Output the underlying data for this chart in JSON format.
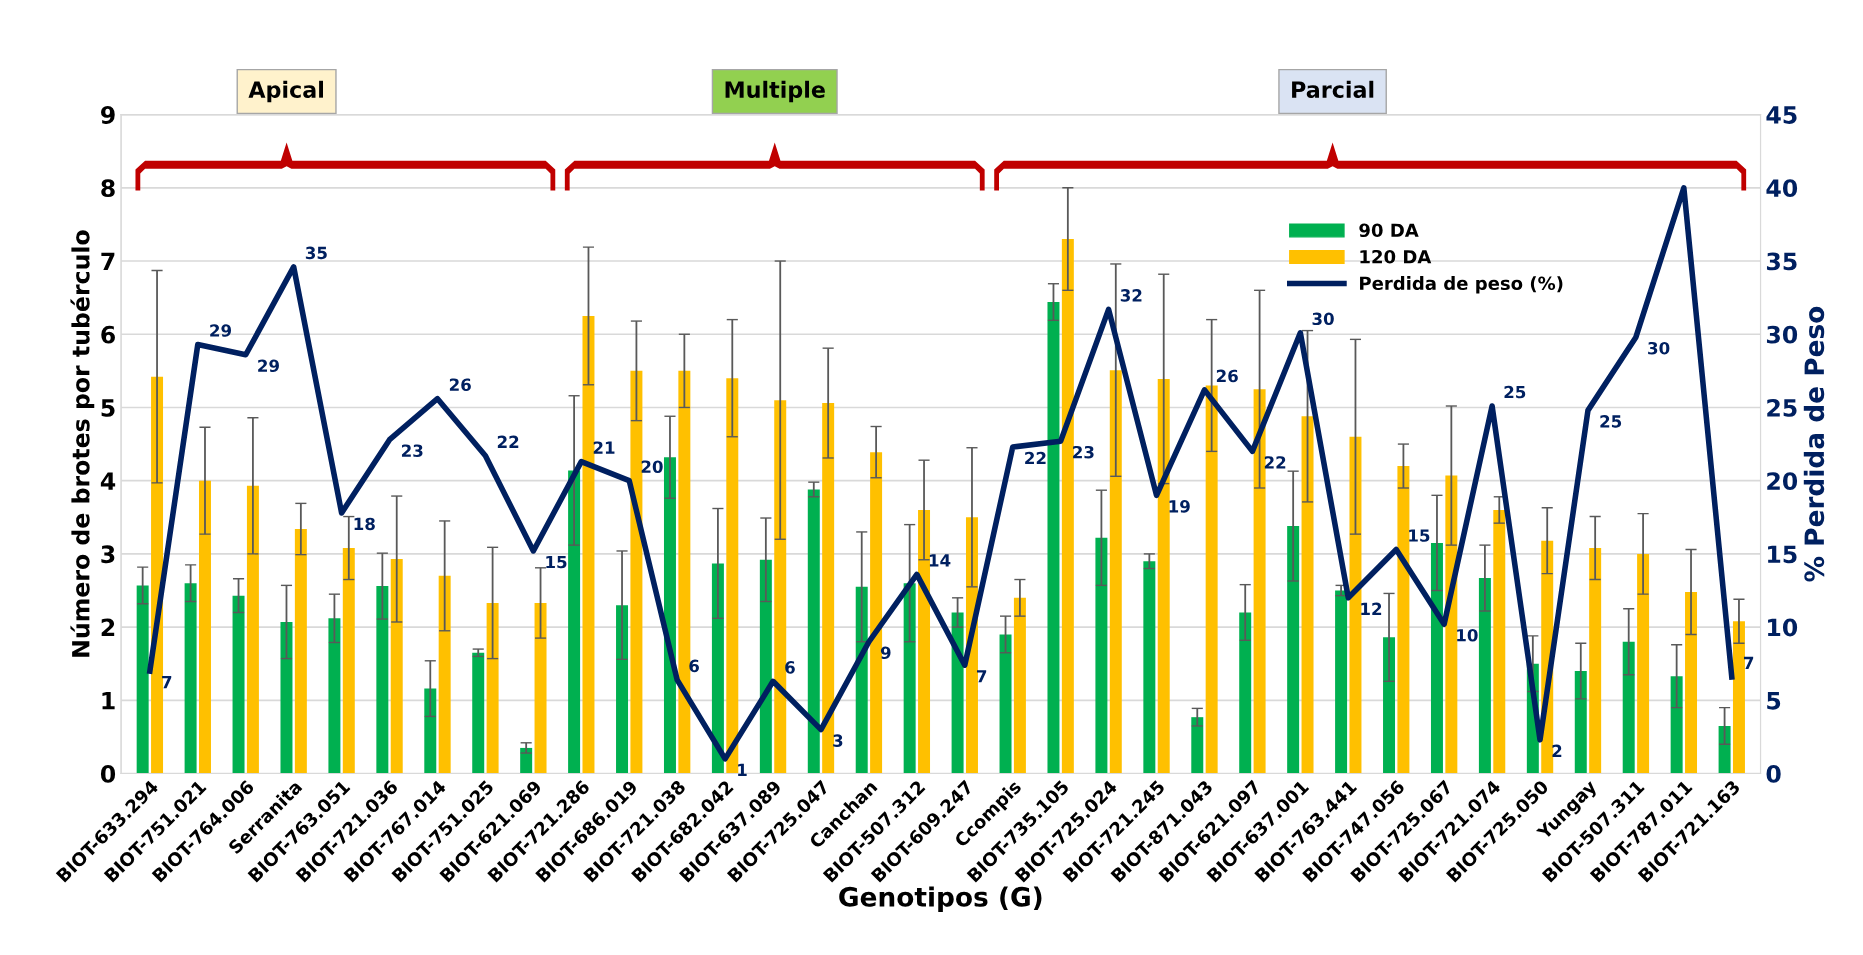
{
  "chart_data": {
    "type": "bar",
    "xlabel": "Genotipos (G)",
    "ylabel": "Número de brotes por tubérculo",
    "y2label": "% Perdida de Peso",
    "categories": [
      "BIOT-633.294",
      "BIOT-751.021",
      "BIOT-764.006",
      "Serranita",
      "BIOT-763.051",
      "BIOT-721.036",
      "BIOT-767.014",
      "BIOT-751.025",
      "BIOT-621.069",
      "BIOT-721.286",
      "BIOT-686.019",
      "BIOT-721.038",
      "BIOT-682.042",
      "BIOT-637.089",
      "BIOT-725.047",
      "Canchan",
      "BIOT-507.312",
      "BIOT-609.247",
      "Ccompis",
      "BIOT-735.105",
      "BIOT-725.024",
      "BIOT-721.245",
      "BIOT-871.043",
      "BIOT-621.097",
      "BIOT-637.001",
      "BIOT-763.441",
      "BIOT-747.056",
      "BIOT-725.067",
      "BIOT-721.074",
      "BIOT-725.050",
      "Yungay",
      "BIOT-507.311",
      "BIOT-787.011",
      "BIOT-721.163"
    ],
    "series": [
      {
        "name": "90 DA",
        "color": "#00b050",
        "values": [
          2.57,
          2.6,
          2.43,
          2.07,
          2.12,
          2.56,
          1.16,
          1.65,
          0.35,
          4.14,
          2.3,
          4.32,
          2.87,
          2.92,
          3.88,
          2.55,
          2.6,
          2.2,
          1.9,
          6.44,
          3.22,
          2.9,
          0.77,
          2.2,
          3.38,
          2.5,
          1.86,
          3.15,
          2.67,
          1.5,
          1.4,
          1.8,
          1.33,
          0.65
        ],
        "errors": [
          0.25,
          0.25,
          0.23,
          0.5,
          0.33,
          0.45,
          0.38,
          0.05,
          0.07,
          1.02,
          0.74,
          0.56,
          0.75,
          0.57,
          0.1,
          0.75,
          0.8,
          0.2,
          0.25,
          0.25,
          0.65,
          0.1,
          0.12,
          0.38,
          0.75,
          0.07,
          0.6,
          0.65,
          0.45,
          0.38,
          0.38,
          0.45,
          0.43,
          0.25
        ]
      },
      {
        "name": "120 DA",
        "color": "#ffc000",
        "values": [
          5.42,
          4.0,
          3.93,
          3.34,
          3.08,
          2.93,
          2.7,
          2.33,
          2.33,
          6.25,
          5.5,
          5.5,
          5.4,
          5.1,
          5.06,
          4.39,
          3.6,
          3.5,
          2.4,
          7.3,
          5.51,
          5.39,
          5.3,
          5.25,
          4.88,
          4.6,
          4.2,
          4.07,
          3.6,
          3.18,
          3.08,
          3.0,
          2.48,
          2.08
        ],
        "errors": [
          1.45,
          0.73,
          0.93,
          0.35,
          0.43,
          0.86,
          0.75,
          0.76,
          0.48,
          0.94,
          0.68,
          0.5,
          0.8,
          1.9,
          0.75,
          0.35,
          0.68,
          0.95,
          0.25,
          0.7,
          1.45,
          1.43,
          0.9,
          1.35,
          1.17,
          1.33,
          0.3,
          0.95,
          0.18,
          0.45,
          0.43,
          0.55,
          0.58,
          0.3
        ]
      },
      {
        "name": "Perdida de peso (%)",
        "type": "line",
        "axis": "y2",
        "color": "#002060",
        "values": [
          7,
          29.3,
          28.6,
          34.6,
          17.8,
          22.8,
          25.6,
          21.7,
          15.2,
          21.3,
          20,
          6.4,
          1,
          6.3,
          3,
          9,
          13.6,
          7.4,
          22.3,
          22.7,
          31.7,
          19,
          26.2,
          22,
          30.1,
          12,
          15.3,
          10.2,
          25.1,
          2.3,
          24.8,
          29.8,
          40,
          6.6
        ],
        "value_labels": [
          "7",
          "29",
          "29",
          "35",
          "18",
          "23",
          "26",
          "22",
          "15",
          "21",
          "20",
          "6",
          "1",
          "6",
          "3",
          "9",
          "14",
          "7",
          "22",
          "23",
          "32",
          "19",
          "26",
          "22",
          "30",
          "12",
          "15",
          "10",
          "25",
          "2",
          "25",
          "30",
          null,
          "7"
        ]
      }
    ],
    "ylim": [
      0,
      9
    ],
    "yticks": [
      0,
      1,
      2,
      3,
      4,
      5,
      6,
      7,
      8,
      9
    ],
    "y2lim": [
      0,
      45
    ],
    "y2ticks": [
      0,
      5,
      10,
      15,
      20,
      25,
      30,
      35,
      40,
      45
    ],
    "grid": "y",
    "legend": "top right",
    "line_style": "solid",
    "marker": "none",
    "annotations": [
      "Apical",
      "Multiple",
      "Parcial"
    ]
  }
}
